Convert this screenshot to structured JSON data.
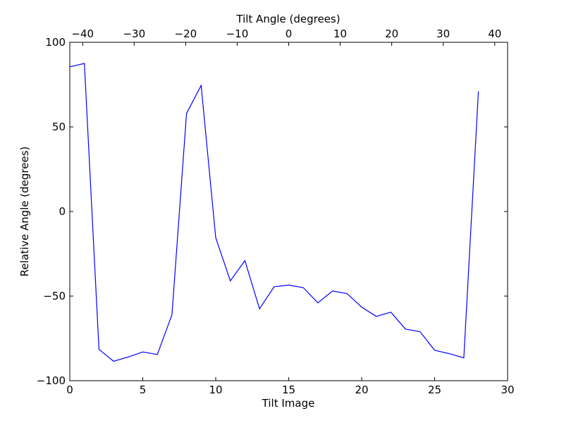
{
  "chart_data": {
    "type": "line",
    "xlabel": "Tilt Image",
    "x2label": "Tilt Angle (degrees)",
    "ylabel": "Relative Angle (degrees)",
    "xlim": [
      0,
      30
    ],
    "x2lim": [
      -42.5,
      42.5
    ],
    "ylim": [
      -100,
      100
    ],
    "x_ticks": [
      0,
      5,
      10,
      15,
      20,
      25,
      30
    ],
    "x_tick_labels": [
      "0",
      "5",
      "10",
      "15",
      "20",
      "25",
      "30"
    ],
    "x2_ticks": [
      -40,
      -30,
      -20,
      -10,
      0,
      10,
      20,
      30,
      40
    ],
    "x2_tick_labels": [
      "−40",
      "−30",
      "−20",
      "−10",
      "0",
      "10",
      "20",
      "30",
      "40"
    ],
    "y_ticks": [
      -100,
      -50,
      0,
      50,
      100
    ],
    "y_tick_labels": [
      "−100",
      "−50",
      "0",
      "50",
      "100"
    ],
    "grid": false,
    "series": [
      {
        "color": "#0000ff",
        "x": [
          0,
          1,
          2,
          3,
          4,
          5,
          6,
          7,
          8,
          9,
          10,
          11,
          12,
          13,
          14,
          15,
          16,
          17,
          18,
          19,
          20,
          21,
          22,
          23,
          24,
          25,
          26,
          27,
          28
        ],
        "y": [
          85.5,
          87.5,
          -81.5,
          -88.5,
          -86,
          -83,
          -84.5,
          -61,
          58,
          74.5,
          -15.5,
          -41,
          -29,
          -57.5,
          -44.5,
          -43.5,
          -45,
          -54,
          -47,
          -48.5,
          -56.5,
          -62,
          -59.5,
          -69.5,
          -71,
          -82,
          -84,
          -86.5,
          71
        ]
      }
    ]
  }
}
